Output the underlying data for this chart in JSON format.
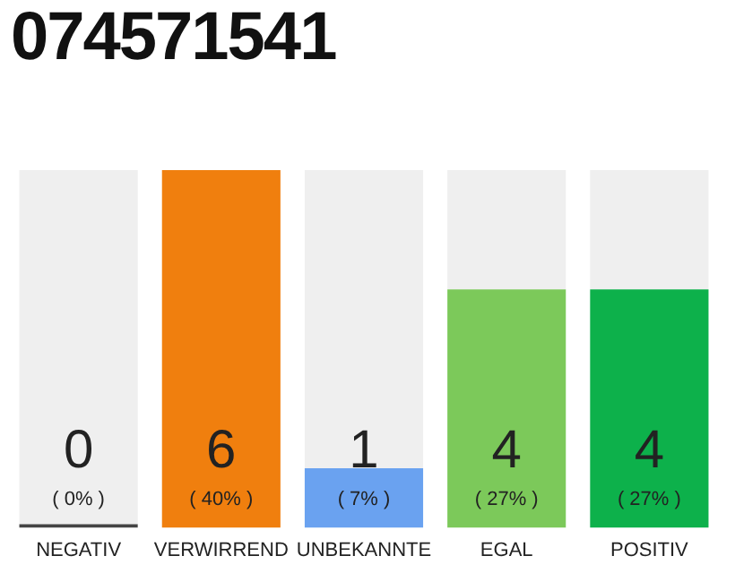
{
  "chart_data": {
    "type": "bar",
    "title": "074571541",
    "categories": [
      "NEGATIV",
      "VERWIRREND",
      "UNBEKANNTE",
      "EGAL",
      "POSITIV"
    ],
    "series": [
      {
        "colors": [
          "#444444",
          "#f07f0e",
          "#6aa2f0",
          "#7cc95a",
          "#0db14b"
        ],
        "values": [
          0,
          6,
          1,
          4,
          4
        ],
        "value_labels": [
          "0",
          "6",
          "1",
          "4",
          "4"
        ]
      },
      {
        "color": "#efefef",
        "values": [
          6,
          0,
          5,
          2,
          2
        ]
      }
    ],
    "stacked": true,
    "ylim": [
      0,
      6
    ],
    "tick_labels": "x",
    "grid": false,
    "legend": false,
    "annotations": [
      "( 0% )",
      "( 40% )",
      "( 7% )",
      "( 27% )",
      "( 27% )"
    ]
  }
}
